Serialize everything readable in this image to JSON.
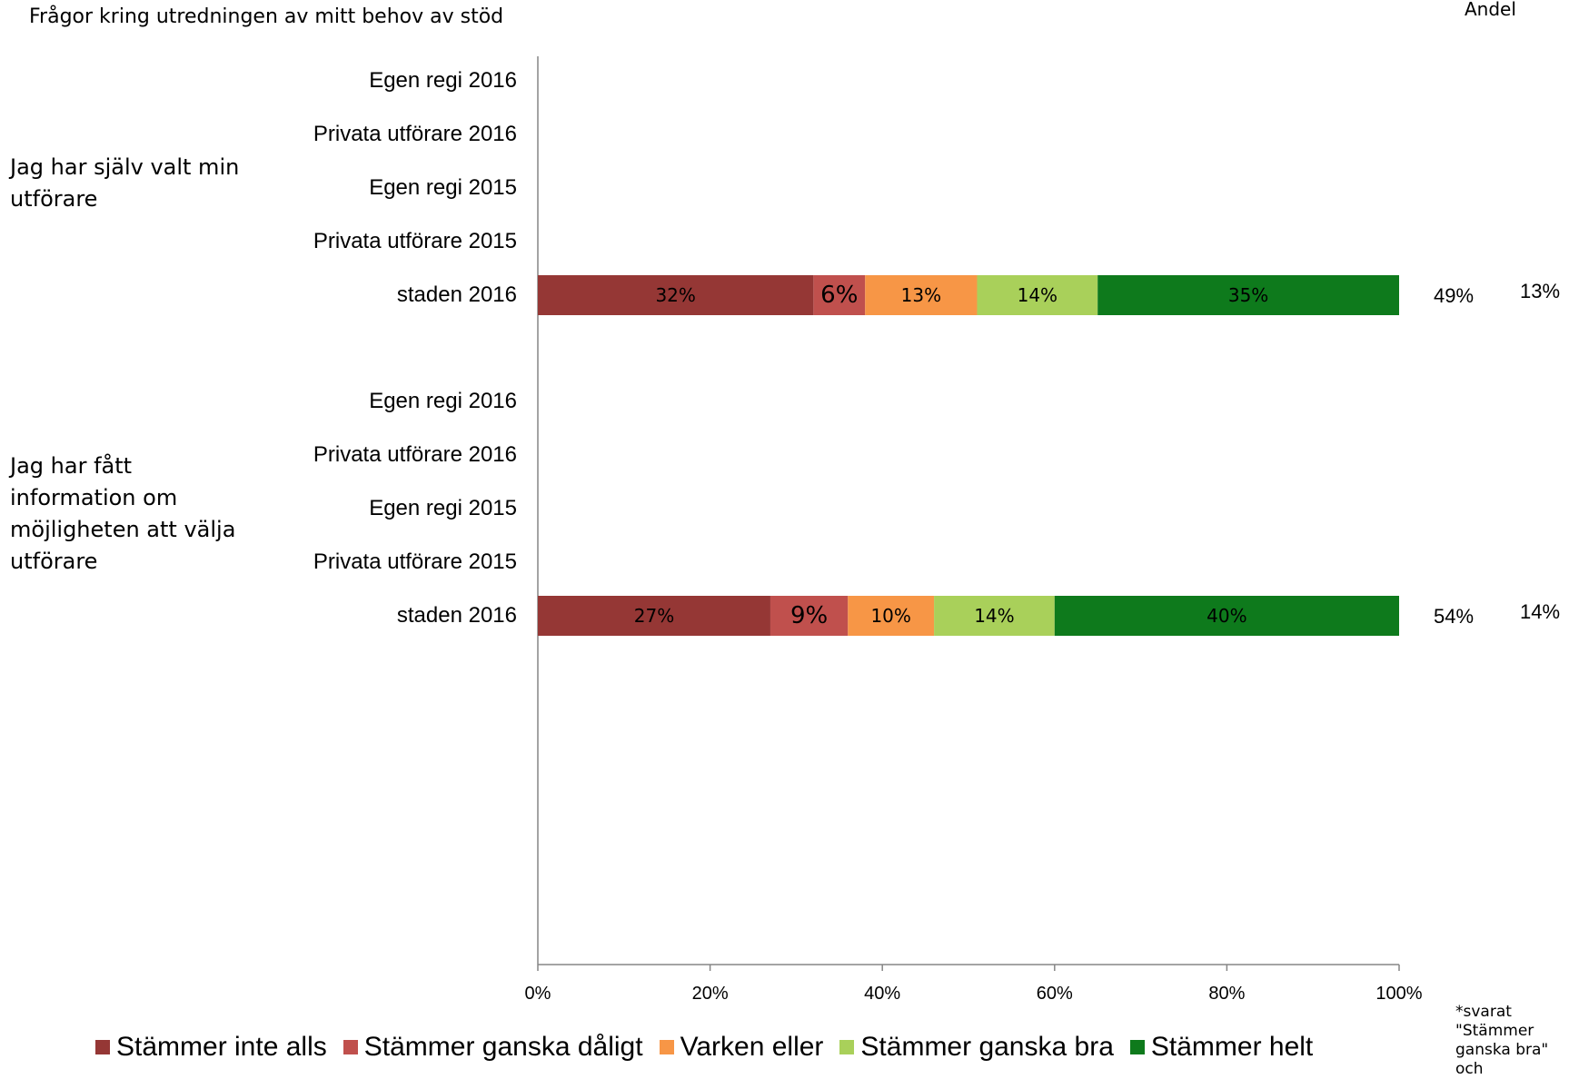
{
  "header": {
    "title": "Frågor kring utredningen av mitt behov av stöd",
    "right_label": "Andel"
  },
  "footnote": "*svarat \"Stämmer ganska bra\" och",
  "chart_data": {
    "type": "bar",
    "orientation": "horizontal",
    "stacked": true,
    "percent": true,
    "xlim": [
      0,
      100
    ],
    "x_ticks": [
      "0%",
      "20%",
      "40%",
      "60%",
      "80%",
      "100%"
    ],
    "groups": [
      {
        "label": "Jag har själv valt min utförare",
        "categories": [
          "Egen regi 2016",
          "Privata utförare 2016",
          "Egen regi 2015",
          "Privata utförare 2015",
          "staden 2016"
        ],
        "values": [
          [
            null,
            null,
            null,
            null,
            null
          ],
          [
            null,
            null,
            null,
            null,
            null
          ],
          [
            null,
            null,
            null,
            null,
            null
          ],
          [
            null,
            null,
            null,
            null,
            null
          ],
          [
            32,
            6,
            13,
            14,
            35
          ]
        ],
        "value_labels": [
          [],
          [],
          [],
          [],
          [
            "32%",
            "6%",
            "13%",
            "14%",
            "35%"
          ]
        ],
        "extra_columns": [
          [],
          [],
          [],
          [],
          [
            "49%",
            "13%"
          ]
        ]
      },
      {
        "label": "Jag har fått information om möjligheten att välja utförare",
        "categories": [
          "Egen regi 2016",
          "Privata utförare 2016",
          "Egen regi 2015",
          "Privata utförare 2015",
          "staden 2016"
        ],
        "values": [
          [
            null,
            null,
            null,
            null,
            null
          ],
          [
            null,
            null,
            null,
            null,
            null
          ],
          [
            null,
            null,
            null,
            null,
            null
          ],
          [
            null,
            null,
            null,
            null,
            null
          ],
          [
            27,
            9,
            10,
            14,
            40
          ]
        ],
        "value_labels": [
          [],
          [],
          [],
          [],
          [
            "27%",
            "9%",
            "10%",
            "14%",
            "40%"
          ]
        ],
        "extra_columns": [
          [],
          [],
          [],
          [],
          [
            "54%",
            "14%"
          ]
        ]
      }
    ],
    "series": [
      {
        "name": "Stämmer inte alls",
        "color": "#953735"
      },
      {
        "name": "Stämmer ganska dåligt",
        "color": "#c0504d"
      },
      {
        "name": "Varken eller",
        "color": "#f79646"
      },
      {
        "name": "Stämmer ganska bra",
        "color": "#a9d05a"
      },
      {
        "name": "Stämmer helt",
        "color": "#0e7a1c"
      }
    ],
    "legend_position": "bottom",
    "grid": false
  }
}
